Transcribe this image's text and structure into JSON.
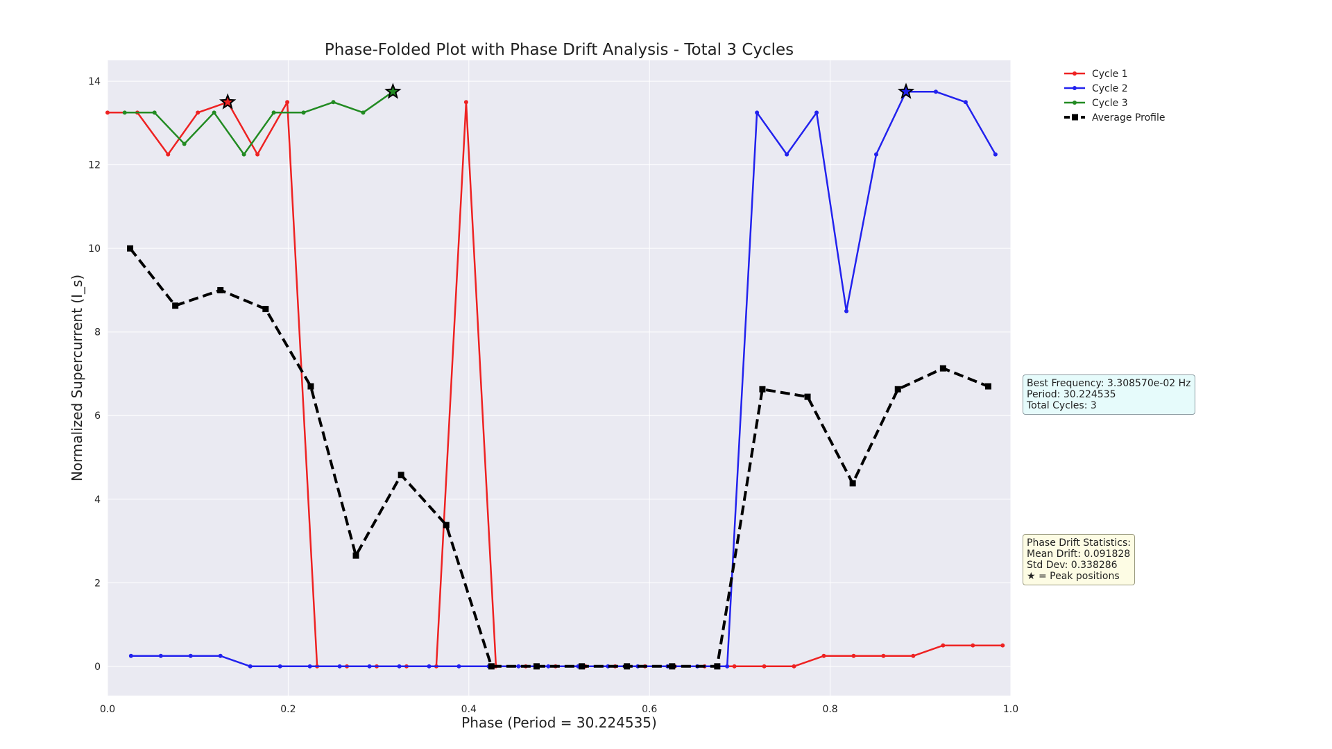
{
  "chart_data": {
    "type": "line",
    "title": "Phase-Folded Plot with Phase Drift Analysis - Total 3 Cycles",
    "xlabel": "Phase (Period = 30.224535)",
    "ylabel": "Normalized Supercurrent (I_s)",
    "xlim": [
      0,
      1
    ],
    "ylim": [
      -0.7,
      14.5
    ],
    "xticks": [
      0.0,
      0.2,
      0.4,
      0.6,
      0.8,
      1.0
    ],
    "xtick_labels": [
      "0.0",
      "0.2",
      "0.4",
      "0.6",
      "0.8",
      "1.0"
    ],
    "yticks": [
      0,
      2,
      4,
      6,
      8,
      10,
      12,
      14
    ],
    "ytick_labels": [
      "0",
      "2",
      "4",
      "6",
      "8",
      "10",
      "12",
      "14"
    ],
    "grid": true,
    "legend_position": "upper-right-outside",
    "series": [
      {
        "name": "Cycle 1",
        "color": "#ee2222",
        "marker": "dot",
        "x": [
          0.0,
          0.033,
          0.067,
          0.1,
          0.133,
          0.166,
          0.199,
          0.232,
          0.265,
          0.298,
          0.331,
          0.364,
          0.397,
          0.43,
          0.463,
          0.496,
          0.529,
          0.562,
          0.595,
          0.628,
          0.661,
          0.694,
          0.727,
          0.76,
          0.793,
          0.826,
          0.859,
          0.892,
          0.925,
          0.958,
          0.991
        ],
        "y": [
          13.25,
          13.25,
          12.25,
          13.25,
          13.5,
          12.25,
          13.5,
          0,
          0,
          0,
          0,
          0,
          13.5,
          0,
          0,
          0,
          0,
          0,
          0,
          0,
          0,
          0,
          0,
          0,
          0.25,
          0.25,
          0.25,
          0.25,
          0.5,
          0.5,
          0.5
        ]
      },
      {
        "name": "Cycle 2",
        "color": "#2222ee",
        "marker": "dot",
        "x": [
          0.026,
          0.059,
          0.092,
          0.125,
          0.158,
          0.191,
          0.224,
          0.257,
          0.29,
          0.323,
          0.356,
          0.389,
          0.422,
          0.455,
          0.488,
          0.521,
          0.554,
          0.587,
          0.62,
          0.653,
          0.686,
          0.719,
          0.752,
          0.785,
          0.818,
          0.851,
          0.884,
          0.917,
          0.95,
          0.983
        ],
        "y": [
          0.25,
          0.25,
          0.25,
          0.25,
          0,
          0,
          0,
          0,
          0,
          0,
          0,
          0,
          0,
          0,
          0,
          0,
          0,
          0,
          0,
          0,
          0,
          13.25,
          12.25,
          13.25,
          8.5,
          12.25,
          13.75,
          13.75,
          13.5,
          12.25
        ]
      },
      {
        "name": "Cycle 3",
        "color": "#228b22",
        "marker": "dot",
        "x": [
          0.019,
          0.052,
          0.085,
          0.118,
          0.151,
          0.184,
          0.217,
          0.25,
          0.283,
          0.316
        ],
        "y": [
          13.25,
          13.25,
          12.5,
          13.25,
          12.25,
          13.25,
          13.25,
          13.5,
          13.25,
          13.75
        ]
      },
      {
        "name": "Average Profile",
        "color": "#000000",
        "marker": "square",
        "dashed": true,
        "x": [
          0.025,
          0.075,
          0.125,
          0.175,
          0.225,
          0.275,
          0.325,
          0.375,
          0.425,
          0.475,
          0.525,
          0.575,
          0.625,
          0.675,
          0.725,
          0.775,
          0.825,
          0.875,
          0.925,
          0.975
        ],
        "y": [
          10.0,
          8.63,
          9.0,
          8.55,
          6.7,
          2.65,
          4.58,
          3.38,
          0,
          0,
          0,
          0,
          0,
          0,
          6.63,
          6.45,
          4.38,
          6.63,
          7.13,
          6.7
        ]
      }
    ],
    "peak_markers": [
      {
        "series": "Cycle 1",
        "x": 0.133,
        "y": 13.5
      },
      {
        "series": "Cycle 3",
        "x": 0.316,
        "y": 13.75
      },
      {
        "series": "Cycle 2",
        "x": 0.884,
        "y": 13.75
      }
    ],
    "annotations": {
      "frequency_box": {
        "line1": "Best Frequency: 3.308570e-02 Hz",
        "line2": "Period: 30.224535",
        "line3": "Total Cycles: 3",
        "color": "#e6fbfb"
      },
      "drift_box": {
        "line1": "Phase Drift Statistics:",
        "line2": "Mean Drift: 0.091828",
        "line3": "Std Dev: 0.338286",
        "line4": "★ = Peak positions",
        "color": "#fdfce4"
      }
    },
    "plot_background": "#eaeaf2"
  }
}
